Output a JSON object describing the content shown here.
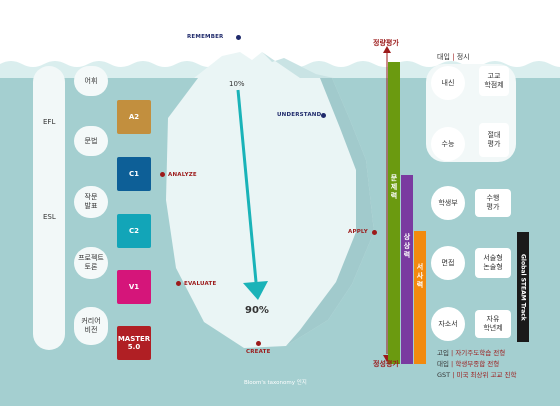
{
  "bloom": {
    "remember": "REMEMBER",
    "understand": "UNDERSTAND",
    "analyze": "ANALYZE",
    "apply": "APPLY",
    "evaluate": "EVALUATE",
    "create": "CREATE",
    "pct_top": "10%",
    "pct_bottom": "90%",
    "caption": "Bloom's taxonomy 인지"
  },
  "programs": {
    "efl": "EFL",
    "esl": "ESL"
  },
  "skills": [
    "어휘",
    "문법",
    "작문\n발표",
    "프로젝트\n토론",
    "커리어\n비전"
  ],
  "levels": [
    {
      "label": "A2",
      "color": "#c28f3e"
    },
    {
      "label": "C1",
      "color": "#0d5f97"
    },
    {
      "label": "C2",
      "color": "#12a5b8"
    },
    {
      "label": "V1",
      "color": "#d5157a"
    },
    {
      "label": "MASTER\n5.0",
      "color": "#b01f24"
    }
  ],
  "bars": {
    "top_label": "정량평가",
    "bottom_label": "정성평가",
    "items": [
      {
        "label": "문제력",
        "color": "#6b9a10"
      },
      {
        "label": "상상력",
        "color": "#7a3aa0"
      },
      {
        "label": "서사력",
        "color": "#f28a0e"
      }
    ]
  },
  "admissions": {
    "header_a": "대입",
    "header_sep": "|",
    "header_b": "정시",
    "circles": [
      "내신",
      "수능",
      "학생부",
      "면접",
      "자소서"
    ],
    "boxes": [
      "고교\n학점제",
      "절대\n평가",
      "수행\n평가",
      "서술형\n논술형",
      "자유\n학년제"
    ],
    "track": "Global STEAM Track"
  },
  "legend": [
    {
      "key": "고입",
      "text": "자기주도학습 전형"
    },
    {
      "key": "대입",
      "text": "학생부종합 전형"
    },
    {
      "key": "GST",
      "text": "미국 최상위 고교 진학"
    }
  ],
  "colors": {
    "water": "#a4cfd0",
    "surface": "#daeeee",
    "ice": "#eaf5f5",
    "ice_shade": "#8fbfc2",
    "arrow": "#1ab3b8",
    "navy": "#1f2a6b",
    "red": "#9c1a1a"
  }
}
